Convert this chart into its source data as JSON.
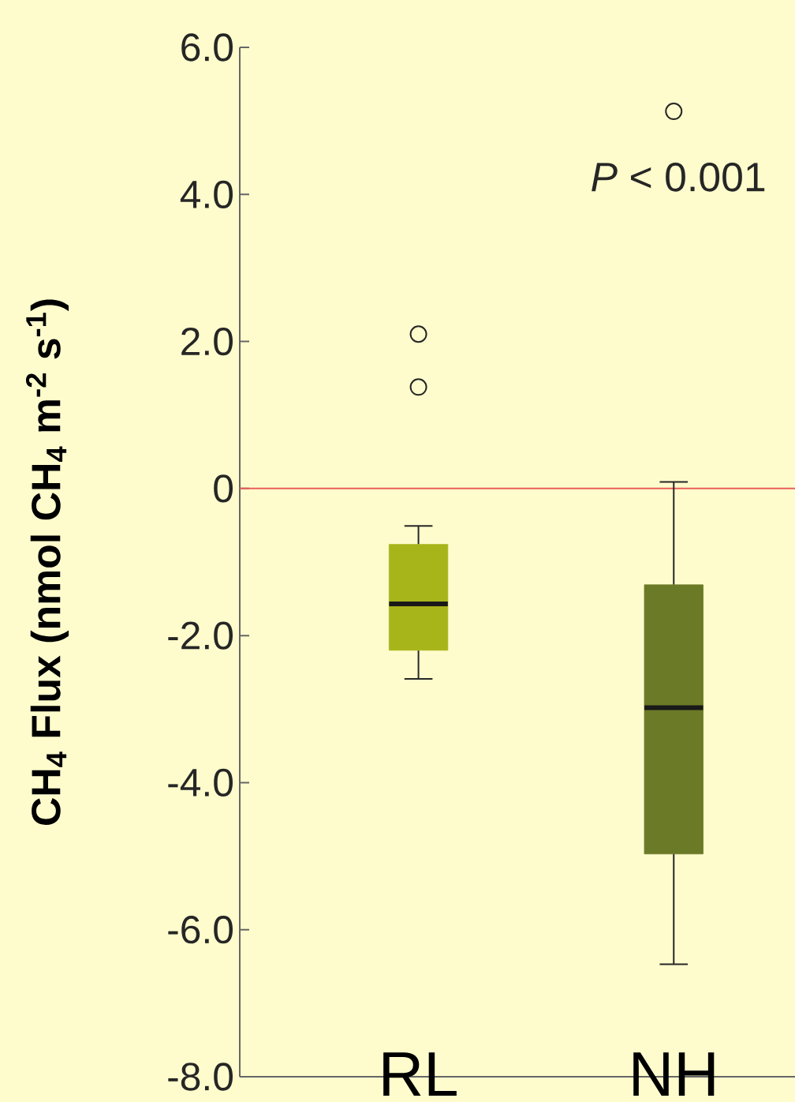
{
  "chart_data": {
    "type": "box",
    "categories": [
      "RL",
      "NH"
    ],
    "colors": [
      "#a8b51a",
      "#6b7a27"
    ],
    "boxes": [
      {
        "low": -2.59,
        "q1": -2.2,
        "median": -1.57,
        "q3": -0.76,
        "high": -0.51,
        "outliers": [
          2.1,
          1.38
        ]
      },
      {
        "low": -6.47,
        "q1": -4.97,
        "median": -2.98,
        "q3": -1.31,
        "high": 0.09,
        "outliers": [
          5.13
        ]
      }
    ],
    "ylabel": "CH$_{4}$ Flux (nmol CH$_{4}$ m$^{-2}$ s$^{-1}$)",
    "ylim": [
      -8,
      6
    ],
    "yticks": [
      {
        "value": -8,
        "label": "-8.0"
      },
      {
        "value": -6,
        "label": "-6.0"
      },
      {
        "value": -4,
        "label": "-4.0"
      },
      {
        "value": -2,
        "label": "-2.0"
      },
      0,
      {
        "value": 2,
        "label": "2.0"
      },
      {
        "value": 4,
        "label": "4.0"
      },
      {
        "value": 6,
        "label": "6.0"
      }
    ],
    "ref_lines": [
      {
        "axis": "y",
        "value": 0,
        "color": "#e8605a"
      }
    ],
    "annotations": [
      "*P* < 0.001"
    ]
  }
}
